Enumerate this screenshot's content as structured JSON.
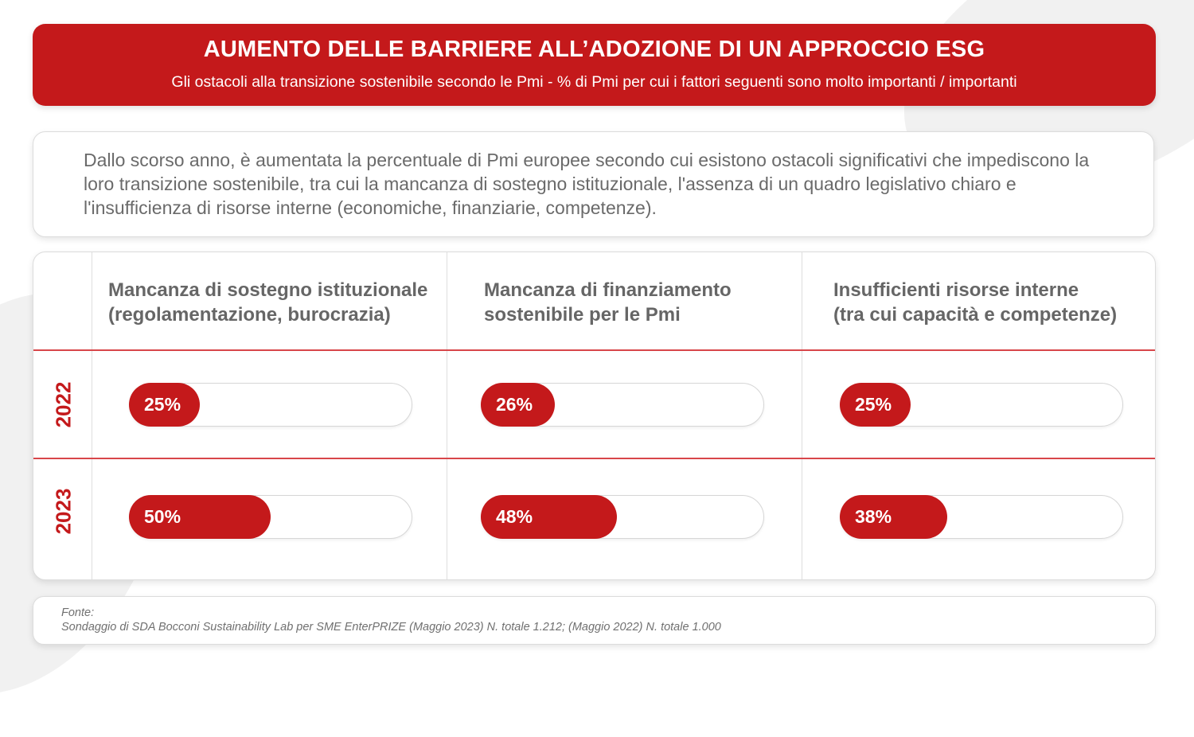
{
  "header": {
    "title": "AUMENTO DELLE BARRIERE ALL’ADOZIONE DI UN APPROCCIO ESG",
    "subtitle": "Gli ostacoli alla transizione sostenibile secondo le Pmi - % di Pmi per cui i fattori seguenti sono molto importanti / importanti"
  },
  "intro": {
    "text": "Dallo scorso anno, è aumentata la percentuale di Pmi europee secondo cui esistono ostacoli significativi che impediscono la loro transizione sostenibile, tra cui la mancanza di sostegno istituzionale, l'assenza di un quadro legislativo chiaro e l'insufficienza di risorse interne (economiche, finanziarie, competenze)."
  },
  "chart_data": {
    "type": "bar",
    "categories": [
      "Mancanza di sostegno istituzionale\n(regolamentazione, burocrazia)",
      "Mancanza di finanziamento\nsostenibile per le Pmi",
      "Insufficienti risorse interne\n(tra cui capacità e competenze)"
    ],
    "series": [
      {
        "name": "2022",
        "values": [
          25,
          26,
          25
        ],
        "labels": [
          "25%",
          "26%",
          "25%"
        ]
      },
      {
        "name": "2023",
        "values": [
          50,
          48,
          38
        ],
        "labels": [
          "50%",
          "48%",
          "38%"
        ]
      }
    ],
    "ylim": [
      0,
      100
    ],
    "colors": {
      "bar": "#c4191b",
      "track": "#ffffff",
      "year": "#c4191b"
    }
  },
  "source": {
    "label": "Fonte:",
    "text": "Sondaggio di SDA Bocconi Sustainability Lab per SME EnterPRIZE (Maggio 2023) N. totale 1.212; (Maggio 2022) N. totale 1.000"
  }
}
